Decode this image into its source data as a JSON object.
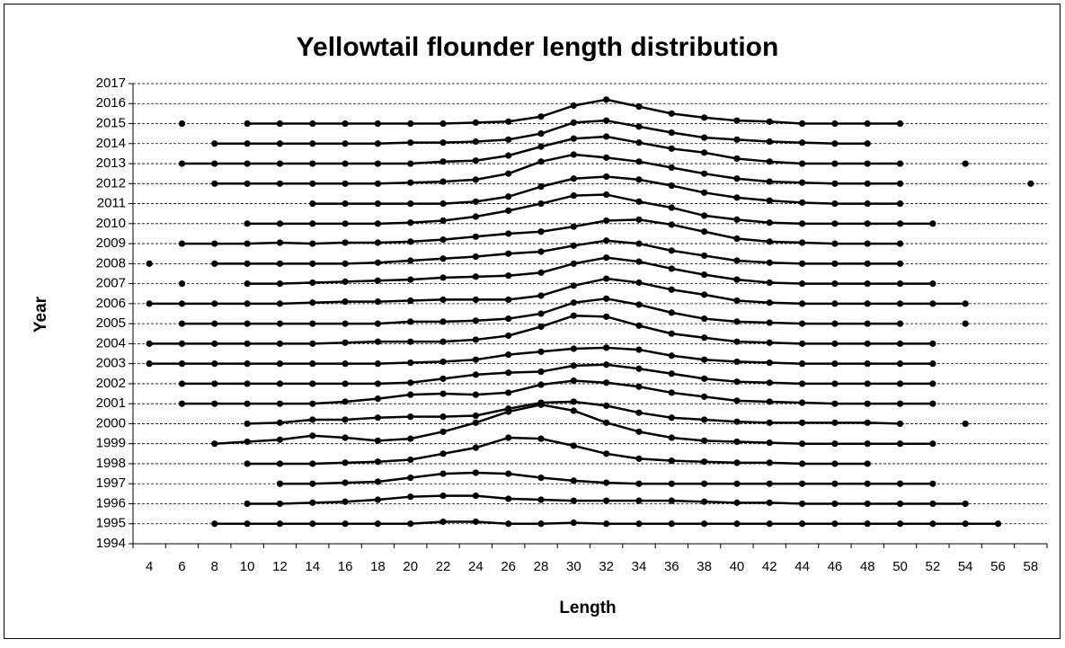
{
  "chart_data": {
    "type": "line",
    "title": "Yellowtail flounder length distribution",
    "x_label": "Length",
    "y_label": "Year",
    "categories": [
      4,
      6,
      8,
      10,
      12,
      14,
      16,
      18,
      20,
      22,
      24,
      26,
      28,
      30,
      32,
      34,
      36,
      38,
      40,
      42,
      44,
      46,
      48,
      50,
      52,
      54,
      56,
      58
    ],
    "ylim": [
      1994,
      2017
    ],
    "yticks": [
      1994,
      1995,
      1996,
      1997,
      1998,
      1999,
      2000,
      2001,
      2002,
      2003,
      2004,
      2005,
      2006,
      2007,
      2008,
      2009,
      2010,
      2011,
      2012,
      2013,
      2014,
      2015,
      2016,
      2017
    ],
    "grid": true,
    "series": [
      {
        "color": "#000000",
        "values": [
          null,
          null,
          1995,
          1995,
          1995,
          1995,
          1995,
          1995,
          1995,
          1995.1,
          1995.1,
          1995,
          1995,
          1995.05,
          1995,
          1995,
          1995,
          1995,
          1995,
          1995,
          1995,
          1995,
          1995,
          1995,
          1995,
          1995,
          1995,
          null
        ]
      },
      {
        "color": "#000000",
        "values": [
          null,
          null,
          null,
          1996,
          1996,
          1996.05,
          1996.1,
          1996.2,
          1996.35,
          1996.4,
          1996.4,
          1996.25,
          1996.2,
          1996.15,
          1996.15,
          1996.15,
          1996.15,
          1996.1,
          1996.05,
          1996.05,
          1996,
          1996,
          1996,
          1996,
          1996,
          1996,
          null,
          null
        ]
      },
      {
        "color": "#000000",
        "values": [
          null,
          null,
          null,
          null,
          1997,
          1997,
          1997.05,
          1997.1,
          1997.3,
          1997.5,
          1997.55,
          1997.5,
          1997.3,
          1997.15,
          1997.05,
          1997,
          1997,
          1997,
          1997,
          1997,
          1997,
          1997,
          1997,
          1997,
          1997,
          null,
          null,
          null
        ]
      },
      {
        "color": "#000000",
        "values": [
          null,
          null,
          null,
          1998,
          1998,
          1998,
          1998.05,
          1998.1,
          1998.2,
          1998.5,
          1998.8,
          1999.3,
          1999.25,
          1998.9,
          1998.5,
          1998.25,
          1998.15,
          1998.1,
          1998.05,
          1998.05,
          1998,
          1998,
          1998,
          null,
          null,
          null,
          null,
          null
        ]
      },
      {
        "color": "#000000",
        "values": [
          null,
          null,
          1999,
          1999.1,
          1999.2,
          1999.4,
          1999.3,
          1999.15,
          1999.25,
          1999.6,
          2000.05,
          2000.6,
          2000.95,
          2000.65,
          2000.05,
          1999.6,
          1999.3,
          1999.15,
          1999.1,
          1999.05,
          1999,
          1999,
          1999,
          1999,
          1999,
          null,
          null,
          null
        ]
      },
      {
        "color": "#000000",
        "values": [
          null,
          null,
          null,
          2000,
          2000.05,
          2000.2,
          2000.2,
          2000.3,
          2000.35,
          2000.35,
          2000.4,
          2000.75,
          2001.05,
          2001.1,
          2000.9,
          2000.55,
          2000.3,
          2000.2,
          2000.1,
          2000.05,
          2000.05,
          2000.05,
          2000.05,
          2000,
          null,
          2000,
          null,
          null
        ]
      },
      {
        "color": "#000000",
        "values": [
          null,
          2001,
          2001,
          2001,
          2001,
          2001,
          2001.1,
          2001.25,
          2001.45,
          2001.5,
          2001.45,
          2001.55,
          2001.95,
          2002.15,
          2002.05,
          2001.85,
          2001.55,
          2001.35,
          2001.15,
          2001.1,
          2001.05,
          2001,
          2001,
          2001,
          2001,
          null,
          null,
          null
        ]
      },
      {
        "color": "#000000",
        "values": [
          null,
          2002,
          2002,
          2002,
          2002,
          2002,
          2002,
          2002,
          2002.05,
          2002.25,
          2002.45,
          2002.55,
          2002.6,
          2002.9,
          2002.95,
          2002.75,
          2002.5,
          2002.25,
          2002.1,
          2002.05,
          2002,
          2002,
          2002,
          2002,
          2002,
          null,
          null,
          null
        ]
      },
      {
        "color": "#000000",
        "values": [
          2003,
          2003,
          2003,
          2003,
          2003,
          2003,
          2003,
          2003,
          2003.05,
          2003.1,
          2003.2,
          2003.45,
          2003.6,
          2003.75,
          2003.8,
          2003.7,
          2003.4,
          2003.2,
          2003.1,
          2003.05,
          2003,
          2003,
          2003,
          2003,
          2003,
          null,
          null,
          null
        ]
      },
      {
        "color": "#000000",
        "values": [
          2004,
          2004,
          2004,
          2004,
          2004,
          2004,
          2004.05,
          2004.1,
          2004.1,
          2004.1,
          2004.2,
          2004.4,
          2004.85,
          2005.4,
          2005.35,
          2004.9,
          2004.5,
          2004.3,
          2004.1,
          2004.05,
          2004,
          2004,
          2004,
          2004,
          2004,
          null,
          null,
          null
        ]
      },
      {
        "color": "#000000",
        "values": [
          null,
          2005,
          2005,
          2005,
          2005,
          2005,
          2005,
          2005,
          2005.1,
          2005.1,
          2005.15,
          2005.25,
          2005.5,
          2006.05,
          2006.25,
          2005.95,
          2005.55,
          2005.25,
          2005.1,
          2005.05,
          2005,
          2005,
          2005,
          2005,
          null,
          2005,
          null,
          null
        ]
      },
      {
        "color": "#000000",
        "values": [
          2006,
          2006,
          2006,
          2006,
          2006,
          2006.05,
          2006.1,
          2006.1,
          2006.15,
          2006.2,
          2006.2,
          2006.2,
          2006.4,
          2006.9,
          2007.25,
          2007.05,
          2006.7,
          2006.45,
          2006.15,
          2006.05,
          2006,
          2006,
          2006,
          2006,
          2006,
          2006,
          null,
          null
        ]
      },
      {
        "color": "#000000",
        "values": [
          null,
          2007,
          null,
          2007,
          2007,
          2007.05,
          2007.1,
          2007.15,
          2007.2,
          2007.3,
          2007.35,
          2007.4,
          2007.55,
          2008,
          2008.3,
          2008.1,
          2007.75,
          2007.45,
          2007.2,
          2007.05,
          2007,
          2007,
          2007,
          2007,
          2007,
          null,
          null,
          null
        ]
      },
      {
        "color": "#000000",
        "values": [
          2008,
          null,
          2008,
          2008,
          2008,
          2008,
          2008,
          2008.05,
          2008.15,
          2008.25,
          2008.35,
          2008.5,
          2008.6,
          2008.9,
          2009.15,
          2009,
          2008.65,
          2008.4,
          2008.15,
          2008.05,
          2008,
          2008,
          2008,
          2008,
          null,
          null,
          null,
          null
        ]
      },
      {
        "color": "#000000",
        "values": [
          null,
          2009,
          2009,
          2009,
          2009.05,
          2009,
          2009.05,
          2009.05,
          2009.1,
          2009.2,
          2009.35,
          2009.5,
          2009.6,
          2009.85,
          2010.15,
          2010.2,
          2009.95,
          2009.6,
          2009.25,
          2009.1,
          2009.05,
          2009,
          2009,
          2009,
          null,
          null,
          null,
          null
        ]
      },
      {
        "color": "#000000",
        "values": [
          null,
          null,
          null,
          2010,
          2010,
          2010,
          2010,
          2010,
          2010.05,
          2010.15,
          2010.35,
          2010.65,
          2011,
          2011.4,
          2011.45,
          2011.1,
          2010.8,
          2010.4,
          2010.2,
          2010.05,
          2010,
          2010,
          2010,
          2010,
          2010,
          null,
          null,
          null
        ]
      },
      {
        "color": "#000000",
        "values": [
          null,
          null,
          null,
          null,
          null,
          2011,
          2011,
          2011,
          2011,
          2011,
          2011.1,
          2011.35,
          2011.85,
          2012.25,
          2012.35,
          2012.2,
          2011.9,
          2011.55,
          2011.3,
          2011.15,
          2011.05,
          2011,
          2011,
          2011,
          null,
          null,
          null,
          null
        ]
      },
      {
        "color": "#000000",
        "values": [
          null,
          null,
          2012,
          2012,
          2012,
          2012,
          2012,
          2012,
          2012.05,
          2012.1,
          2012.2,
          2012.5,
          2013.1,
          2013.45,
          2013.3,
          2013.1,
          2012.8,
          2012.5,
          2012.25,
          2012.1,
          2012.05,
          2012,
          2012,
          2012,
          null,
          null,
          null,
          2012
        ]
      },
      {
        "color": "#000000",
        "values": [
          null,
          2013,
          2013,
          2013,
          2013,
          2013,
          2013,
          2013,
          2013,
          2013.1,
          2013.15,
          2013.4,
          2013.85,
          2014.25,
          2014.35,
          2014.05,
          2013.75,
          2013.55,
          2013.25,
          2013.1,
          2013,
          2013,
          2013,
          2013,
          null,
          2013,
          null,
          null
        ]
      },
      {
        "color": "#000000",
        "values": [
          null,
          null,
          2014,
          2014,
          2014,
          2014,
          2014,
          2014,
          2014.05,
          2014.05,
          2014.1,
          2014.2,
          2014.5,
          2015.05,
          2015.15,
          2014.85,
          2014.55,
          2014.3,
          2014.2,
          2014.1,
          2014.05,
          2014,
          2014,
          null,
          null,
          null,
          null,
          null
        ]
      },
      {
        "color": "#000000",
        "values": [
          null,
          2015,
          null,
          2015,
          2015,
          2015,
          2015,
          2015,
          2015,
          2015,
          2015.05,
          2015.1,
          2015.35,
          2015.9,
          2016.2,
          2015.85,
          2015.5,
          2015.3,
          2015.15,
          2015.1,
          2015,
          2015,
          2015,
          2015,
          null,
          null,
          null,
          null
        ]
      }
    ]
  }
}
